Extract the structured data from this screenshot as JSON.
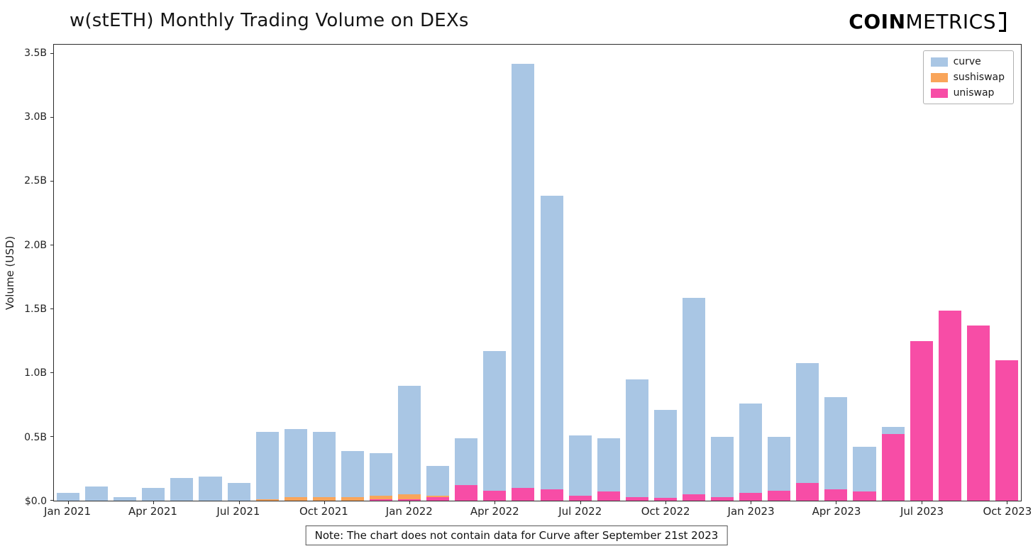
{
  "page": {
    "title": "w(stETH) Monthly Trading Volume on DEXs",
    "logo": {
      "bold": "COIN",
      "light": "METRICS"
    },
    "note": "Note: The chart does not contain data for Curve after September 21st 2023"
  },
  "chart_data": {
    "type": "bar",
    "stacked": true,
    "title": "w(stETH) Monthly Trading Volume on DEXs",
    "ylabel": "Volume (USD)",
    "xlabel": "",
    "units": "billions USD",
    "ylim": [
      0,
      3.57
    ],
    "grid": false,
    "legend_position": "upper right",
    "x_tick_every": 3,
    "y_ticks": [
      {
        "value": 0,
        "label": "$0.0"
      },
      {
        "value": 0.5,
        "label": "0.5B"
      },
      {
        "value": 1.0,
        "label": "1.0B"
      },
      {
        "value": 1.5,
        "label": "1.5B"
      },
      {
        "value": 2.0,
        "label": "2.0B"
      },
      {
        "value": 2.5,
        "label": "2.5B"
      },
      {
        "value": 3.0,
        "label": "3.0B"
      },
      {
        "value": 3.5,
        "label": "3.5B"
      }
    ],
    "categories": [
      "Jan 2021",
      "Feb 2021",
      "Mar 2021",
      "Apr 2021",
      "May 2021",
      "Jun 2021",
      "Jul 2021",
      "Aug 2021",
      "Sep 2021",
      "Oct 2021",
      "Nov 2021",
      "Dec 2021",
      "Jan 2022",
      "Feb 2022",
      "Mar 2022",
      "Apr 2022",
      "May 2022",
      "Jun 2022",
      "Jul 2022",
      "Aug 2022",
      "Sep 2022",
      "Oct 2022",
      "Nov 2022",
      "Dec 2022",
      "Jan 2023",
      "Feb 2023",
      "Mar 2023",
      "Apr 2023",
      "May 2023",
      "Jun 2023",
      "Jul 2023",
      "Aug 2023",
      "Sep 2023",
      "Oct 2023"
    ],
    "legend": {
      "entries": [
        {
          "name": "curve",
          "color": "#a9c6e4"
        },
        {
          "name": "sushiswap",
          "color": "#f9a55a"
        },
        {
          "name": "uniswap",
          "color": "#f74da6"
        }
      ]
    },
    "series": [
      {
        "name": "uniswap",
        "color": "#f74da6",
        "values": [
          0,
          0,
          0,
          0,
          0,
          0,
          0,
          0,
          0,
          0,
          0,
          0.01,
          0.01,
          0.03,
          0.12,
          0.08,
          0.1,
          0.09,
          0.04,
          0.07,
          0.03,
          0.02,
          0.05,
          0.03,
          0.06,
          0.08,
          0.14,
          0.09,
          0.07,
          0.52,
          1.25,
          1.49,
          1.37,
          1.1
        ]
      },
      {
        "name": "sushiswap",
        "color": "#f9a55a",
        "values": [
          0,
          0,
          0,
          0,
          0,
          0,
          0,
          0.01,
          0.03,
          0.03,
          0.03,
          0.03,
          0.04,
          0.01,
          0,
          0,
          0,
          0,
          0,
          0,
          0,
          0,
          0,
          0,
          0,
          0,
          0,
          0,
          0,
          0,
          0,
          0,
          0,
          0
        ]
      },
      {
        "name": "curve",
        "color": "#a9c6e4",
        "values": [
          0.06,
          0.11,
          0.03,
          0.1,
          0.18,
          0.19,
          0.14,
          0.53,
          0.53,
          0.51,
          0.36,
          0.33,
          0.85,
          0.23,
          0.37,
          1.09,
          3.32,
          2.3,
          0.47,
          0.42,
          0.92,
          0.69,
          1.54,
          0.47,
          0.7,
          0.42,
          0.94,
          0.72,
          0.35,
          0.06,
          0,
          0,
          0,
          0
        ]
      }
    ]
  }
}
